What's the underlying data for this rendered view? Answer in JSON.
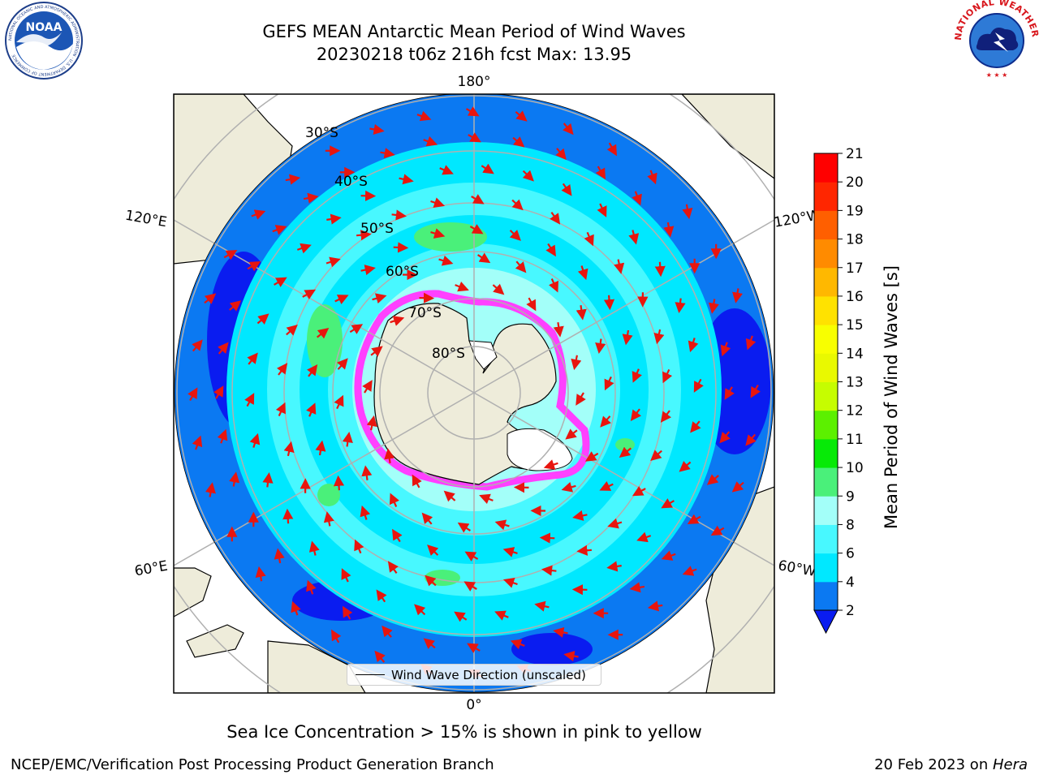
{
  "title": {
    "line1": "GEFS MEAN Antarctic Mean Period of Wind Waves",
    "line2": "20230218 t06z 216h fcst   Max: 13.95"
  },
  "logos": {
    "left": "NOAA",
    "left_ring": "NATIONAL OCEANIC AND ATMOSPHERIC ADMINISTRATION · U.S. DEPARTMENT OF COMMERCE",
    "right_ring": "NATIONAL WEATHER SERVICE"
  },
  "map": {
    "projection": "south-polar-stereographic",
    "longitude_labels": {
      "top": "180°",
      "bottom": "0°",
      "upper_left": "120°E",
      "upper_right": "120°W",
      "lower_left": "60°E",
      "lower_right": "60°W"
    },
    "latitude_labels": [
      "30°S",
      "40°S",
      "50°S",
      "60°S",
      "70°S",
      "80°S"
    ],
    "legend_label": "Wind Wave Direction (unscaled)",
    "colors": {
      "land": "#eeecda",
      "ocean_deep_blue": "#0a1cf0",
      "ocean_blue": "#0b79f2",
      "ocean_cyan": "#00e8ff",
      "ocean_light_cyan": "#48f8ff",
      "ocean_pale_cyan": "#a3fff9",
      "ocean_green": "#4af07a",
      "sea_ice": "#ff40ff",
      "arrows": "#e8150e",
      "grid": "#b0b0b0"
    }
  },
  "colorbar": {
    "label": "Mean Period of Wind Waves [s]",
    "ticks": [
      "2",
      "4",
      "6",
      "8",
      "9",
      "10",
      "11",
      "12",
      "13",
      "14",
      "15",
      "16",
      "17",
      "18",
      "19",
      "20",
      "21"
    ],
    "colors": [
      "#0b79f2",
      "#00e8ff",
      "#48f8ff",
      "#a3fff9",
      "#4af07a",
      "#07ea07",
      "#5cf000",
      "#c6fd00",
      "#e9f900",
      "#f8ff00",
      "#ffe200",
      "#ffb800",
      "#ff8b00",
      "#ff5f00",
      "#ff2600",
      "#ff0000"
    ],
    "extend_color": "#0a1cf0"
  },
  "caption": "Sea Ice Concentration > 15% is shown in pink to yellow",
  "footer": {
    "left": "NCEP/EMC/Verification Post Processing Product Generation Branch",
    "right_prefix": "20 Feb 2023 on ",
    "right_host": "Hera"
  }
}
